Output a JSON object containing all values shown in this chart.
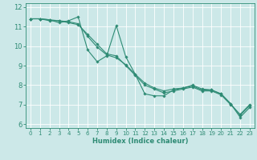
{
  "title": "",
  "xlabel": "Humidex (Indice chaleur)",
  "background_color": "#cce8e8",
  "grid_color": "#ffffff",
  "line_color": "#2e8b74",
  "xlim": [
    -0.5,
    23.5
  ],
  "ylim": [
    5.8,
    12.2
  ],
  "xticks": [
    0,
    1,
    2,
    3,
    4,
    5,
    6,
    7,
    8,
    9,
    10,
    11,
    12,
    13,
    14,
    15,
    16,
    17,
    18,
    19,
    20,
    21,
    22,
    23
  ],
  "yticks": [
    6,
    7,
    8,
    9,
    10,
    11,
    12
  ],
  "lines": [
    {
      "x": [
        0,
        1,
        2,
        3,
        4,
        5,
        6,
        7,
        8,
        9,
        10,
        11,
        12,
        13,
        14,
        15,
        16,
        17,
        18,
        19,
        20,
        21,
        22,
        23
      ],
      "y": [
        11.4,
        11.4,
        11.35,
        11.2,
        11.3,
        11.5,
        9.8,
        9.2,
        9.5,
        11.05,
        9.45,
        8.55,
        7.55,
        7.45,
        7.45,
        7.75,
        7.85,
        8.0,
        7.8,
        7.75,
        7.55,
        7.05,
        6.35,
        6.85
      ]
    },
    {
      "x": [
        0,
        1,
        2,
        3,
        4,
        5,
        6,
        7,
        8,
        9,
        10,
        11,
        12,
        13,
        14,
        15,
        16,
        17,
        18,
        19,
        20,
        21,
        22,
        23
      ],
      "y": [
        11.4,
        11.4,
        11.3,
        11.3,
        11.2,
        11.1,
        10.6,
        10.1,
        9.6,
        9.5,
        9.0,
        8.5,
        8.0,
        7.8,
        7.6,
        7.7,
        7.8,
        7.9,
        7.7,
        7.7,
        7.5,
        7.0,
        6.5,
        7.0
      ]
    },
    {
      "x": [
        0,
        1,
        2,
        3,
        4,
        5,
        6,
        7,
        8,
        9,
        10,
        11,
        12,
        13,
        14,
        15,
        16,
        17,
        18,
        19,
        20,
        21,
        22,
        23
      ],
      "y": [
        11.4,
        11.4,
        11.35,
        11.3,
        11.25,
        11.15,
        10.5,
        9.95,
        9.55,
        9.4,
        9.05,
        8.55,
        8.1,
        7.85,
        7.7,
        7.8,
        7.85,
        7.95,
        7.75,
        7.75,
        7.55,
        7.05,
        6.45,
        6.95
      ]
    }
  ],
  "xlabel_fontsize": 6.0,
  "tick_fontsize": 5.0,
  "spine_color": "#2e8b74",
  "marker": "D",
  "markersize": 1.8,
  "linewidth": 0.8
}
